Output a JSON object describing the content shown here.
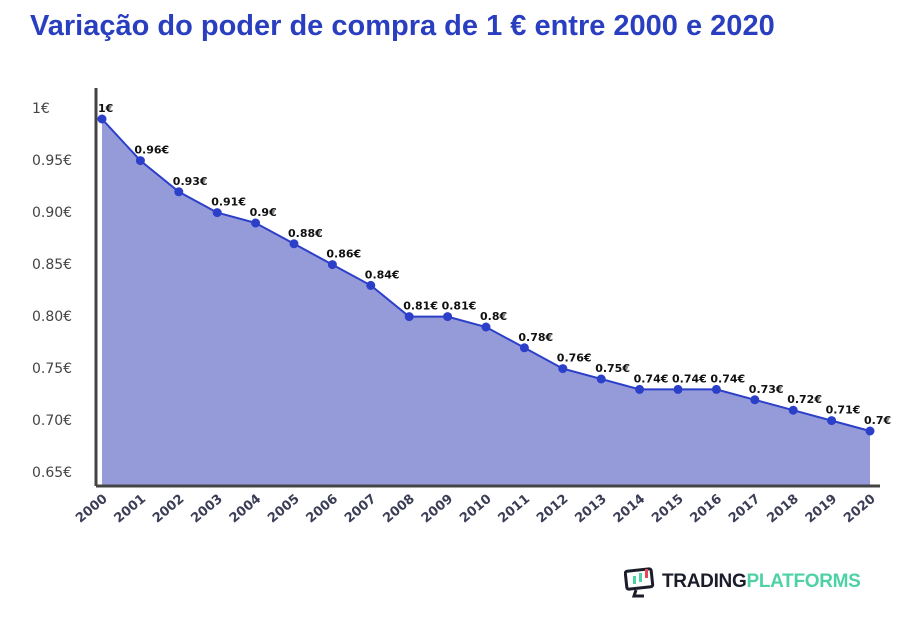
{
  "chart_data": {
    "type": "area",
    "title": "Variação do poder de compra de 1 € entre 2000 e 2020",
    "xlabel": "",
    "ylabel": "",
    "categories": [
      "2000",
      "2001",
      "2002",
      "2003",
      "2004",
      "2005",
      "2006",
      "2007",
      "2008",
      "2009",
      "2010",
      "2011",
      "2012",
      "2013",
      "2014",
      "2015",
      "2016",
      "2017",
      "2018",
      "2019",
      "2020"
    ],
    "values": [
      1,
      0.96,
      0.93,
      0.91,
      0.9,
      0.88,
      0.86,
      0.84,
      0.81,
      0.81,
      0.8,
      0.78,
      0.76,
      0.75,
      0.74,
      0.74,
      0.74,
      0.73,
      0.72,
      0.71,
      0.7
    ],
    "data_labels": [
      "1€",
      "0.96€",
      "0.93€",
      "0.91€",
      "0.9€",
      "0.88€",
      "0.86€",
      "0.84€",
      "0.81€",
      "0.81€",
      "0.8€",
      "0.78€",
      "0.76€",
      "0.75€",
      "0.74€",
      "0.74€",
      "0.74€",
      "0.73€",
      "0.72€",
      "0.71€",
      "0.7€"
    ],
    "y_ticks": [
      1,
      0.95,
      0.9,
      0.85,
      0.8,
      0.75,
      0.7,
      0.65
    ],
    "y_tick_labels": [
      "1€",
      "0.95€",
      "0.90€",
      "0.85€",
      "0.80€",
      "0.75€",
      "0.70€",
      "0.65€"
    ],
    "ylim": [
      0.65,
      1
    ],
    "grid": false,
    "legend": "none",
    "colors": {
      "line": "#2b3fc8",
      "fill": "#959bd9",
      "title": "#2a3fbf",
      "axis": "#444444"
    }
  },
  "logo": {
    "text_dark": "TRADING",
    "text_accent": "PLATFORMS"
  }
}
